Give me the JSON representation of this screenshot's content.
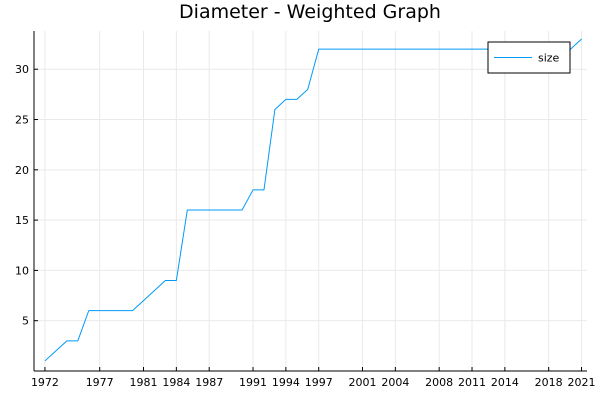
{
  "chart_data": {
    "type": "line",
    "title": "Diameter - Weighted Graph",
    "xlabel": "",
    "ylabel": "",
    "xlim": [
      1971,
      2021.5
    ],
    "ylim": [
      0,
      33.8
    ],
    "x_ticks": [
      1972,
      1977,
      1981,
      1984,
      1987,
      1991,
      1994,
      1997,
      2001,
      2004,
      2008,
      2011,
      2014,
      2018,
      2021
    ],
    "y_ticks": [
      5,
      10,
      15,
      20,
      25,
      30
    ],
    "grid": true,
    "legend_position": "top-right",
    "series": [
      {
        "name": "size",
        "color": "#009AFA",
        "x": [
          1972,
          1973,
          1974,
          1975,
          1976,
          1977,
          1978,
          1979,
          1980,
          1981,
          1982,
          1983,
          1984,
          1985,
          1986,
          1987,
          1988,
          1989,
          1990,
          1991,
          1992,
          1993,
          1994,
          1995,
          1996,
          1997,
          1998,
          1999,
          2000,
          2001,
          2002,
          2003,
          2004,
          2005,
          2006,
          2007,
          2008,
          2009,
          2010,
          2011,
          2012,
          2013,
          2014,
          2015,
          2016,
          2017,
          2018,
          2019,
          2020,
          2021
        ],
        "values": [
          1,
          2,
          3,
          3,
          6,
          6,
          6,
          6,
          6,
          7,
          8,
          9,
          9,
          16,
          16,
          16,
          16,
          16,
          16,
          18,
          18,
          26,
          27,
          27,
          28,
          32,
          32,
          32,
          32,
          32,
          32,
          32,
          32,
          32,
          32,
          32,
          32,
          32,
          32,
          32,
          32,
          32,
          32,
          32,
          32,
          32,
          32,
          32,
          32,
          33
        ]
      }
    ]
  }
}
